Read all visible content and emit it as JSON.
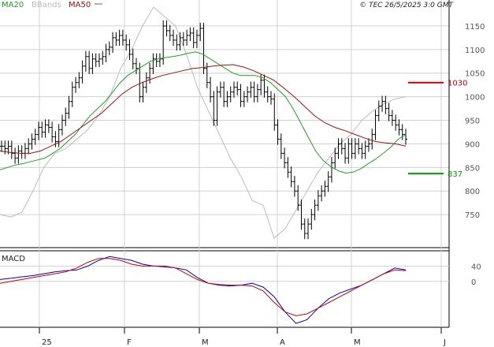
{
  "header": {
    "legend": [
      {
        "label": "MA20",
        "color": "#20a020"
      },
      {
        "label": "BBands",
        "color": "#bbbbbb"
      },
      {
        "label": "MA50",
        "color": "#a01010"
      }
    ],
    "source": "© TEC 26/5/2025 3:0 GMT"
  },
  "macd_panel": {
    "label": "MACD",
    "y_ticks": [
      "40",
      "0"
    ]
  },
  "chart_data": [
    {
      "type": "candlestick",
      "title": "",
      "x_ticks": [
        "25",
        "F",
        "M",
        "A",
        "M",
        "J"
      ],
      "y_ticks": [
        1150,
        1100,
        1050,
        1000,
        950,
        900,
        850,
        800,
        750
      ],
      "ylim": [
        680,
        1185
      ],
      "grid": true,
      "annotations": [
        {
          "label": "1030",
          "value": 1030,
          "color": "#cc0000"
        },
        {
          "label": "837",
          "value": 837,
          "color": "#009900"
        }
      ],
      "series": [
        {
          "name": "Price",
          "color": "#000000",
          "values": [
            895,
            890,
            895,
            880,
            870,
            885,
            880,
            890,
            900,
            910,
            920,
            935,
            925,
            940,
            935,
            915,
            905,
            930,
            950,
            965,
            990,
            1020,
            1030,
            1040,
            1065,
            1085,
            1060,
            1080,
            1075,
            1080,
            1085,
            1100,
            1105,
            1125,
            1120,
            1130,
            1120,
            1110,
            1090,
            1070,
            1060,
            1000,
            1020,
            1040,
            1060,
            1080,
            1075,
            1080,
            1150,
            1140,
            1130,
            1120,
            1110,
            1125,
            1120,
            1130,
            1135,
            1115,
            1130,
            1145,
            1060,
            1030,
            1000,
            950,
            1010,
            1020,
            990,
            1000,
            1010,
            1020,
            1015,
            990,
            1000,
            1010,
            1020,
            1000,
            1015,
            1035,
            1010,
            1000,
            995,
            940,
            910,
            880,
            860,
            840,
            820,
            800,
            770,
            730,
            710,
            730,
            750,
            770,
            790,
            800,
            810,
            830,
            860,
            880,
            900,
            890,
            870,
            900,
            880,
            900,
            890,
            880,
            895,
            900,
            920,
            960,
            980,
            990,
            975,
            960,
            950,
            940,
            930,
            920,
            910
          ]
        },
        {
          "name": "MA20",
          "color": "#20a020",
          "values": [
            845,
            850,
            855,
            858,
            862,
            866,
            870,
            880,
            890,
            905,
            920,
            940,
            960,
            975,
            990,
            1010,
            1030,
            1045,
            1055,
            1065,
            1075,
            1080,
            1083,
            1085,
            1088,
            1092,
            1095,
            1090,
            1080,
            1070,
            1060,
            1050,
            1045,
            1045,
            1045,
            1040,
            1030,
            1015,
            1000,
            975,
            945,
            915,
            885,
            865,
            852,
            843,
            838,
            840,
            847,
            858,
            868,
            880,
            893,
            910,
            920
          ]
        },
        {
          "name": "MA50",
          "color": "#a01010",
          "values": [
            885,
            882,
            880,
            880,
            885,
            895,
            905,
            920,
            935,
            950,
            965,
            985,
            1005,
            1020,
            1030,
            1038,
            1045,
            1050,
            1055,
            1060,
            1062,
            1065,
            1067,
            1068,
            1063,
            1055,
            1045,
            1035,
            1018,
            1000,
            980,
            960,
            945,
            935,
            928,
            920,
            912,
            905,
            902,
            900,
            895
          ]
        },
        {
          "name": "BBands",
          "color": "#bbbbbb",
          "values": [
            750,
            745,
            755,
            800,
            850,
            880,
            890,
            910,
            930,
            960,
            1000,
            1060,
            1100,
            1150,
            1190,
            1170,
            1150,
            1090,
            1020,
            970,
            920,
            870,
            830,
            780,
            770,
            700,
            720,
            760,
            800,
            840,
            870,
            900,
            920,
            950,
            970,
            985,
            995,
            1000
          ]
        }
      ]
    },
    {
      "type": "line",
      "title": "MACD",
      "y_ticks": [
        "40",
        "0"
      ],
      "grid": true,
      "series": [
        {
          "name": "MACD",
          "color": "#0000cc",
          "values": [
            5,
            8,
            12,
            15,
            20,
            25,
            28,
            30,
            40,
            55,
            65,
            60,
            55,
            45,
            40,
            38,
            35,
            30,
            10,
            -5,
            -10,
            -12,
            -10,
            -5,
            -15,
            -40,
            -80,
            -110,
            -100,
            -70,
            -45,
            -30,
            -20,
            -10,
            5,
            20,
            35,
            30
          ]
        },
        {
          "name": "Signal",
          "color": "#cc0000",
          "values": [
            -5,
            0,
            5,
            10,
            15,
            20,
            25,
            35,
            50,
            60,
            60,
            55,
            45,
            40,
            40,
            40,
            35,
            20,
            5,
            -5,
            -8,
            -10,
            -10,
            -12,
            -25,
            -55,
            -80,
            -90,
            -85,
            -70,
            -55,
            -40,
            -25,
            -10,
            5,
            20,
            30,
            28
          ]
        }
      ]
    }
  ]
}
